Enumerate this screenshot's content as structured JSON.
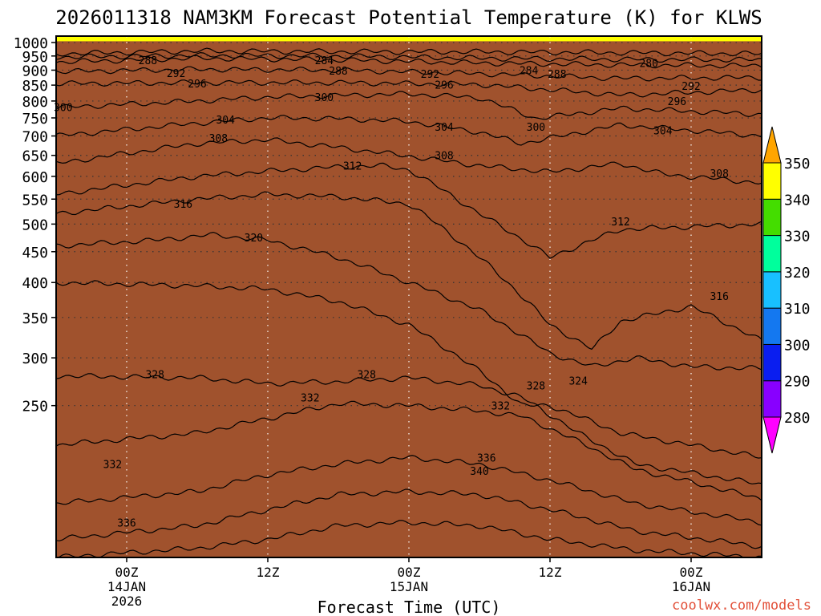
{
  "chart_data": {
    "type": "heatmap",
    "title": "2026011318 NAM3KM Forecast Potential Temperature (K) for KLWS",
    "xlabel": "Forecast Time (UTC)",
    "ylabel": "",
    "x_range_hours": [
      -5,
      45
    ],
    "y_range_hPa": [
      1025,
      140
    ],
    "y_ticks": [
      "250",
      "300",
      "350",
      "400",
      "450",
      "500",
      "550",
      "600",
      "650",
      "700",
      "750",
      "800",
      "850",
      "900",
      "950",
      "1000"
    ],
    "x_ticks": [
      {
        "hour": 0,
        "l1": "00Z",
        "l2": "14JAN",
        "l3": "2026"
      },
      {
        "hour": 10,
        "l1": "12Z",
        "l2": "",
        "l3": ""
      },
      {
        "hour": 20,
        "l1": "00Z",
        "l2": "15JAN",
        "l3": ""
      },
      {
        "hour": 30,
        "l1": "12Z",
        "l2": "",
        "l3": ""
      },
      {
        "hour": 40,
        "l1": "00Z",
        "l2": "16JAN",
        "l3": ""
      }
    ],
    "colorbar": {
      "ticks": [
        "350",
        "340",
        "330",
        "320",
        "310",
        "300",
        "290",
        "280"
      ],
      "bands": [
        {
          "from": 280,
          "to": 290,
          "color": "#8800ff"
        },
        {
          "from": 290,
          "to": 300,
          "color": "#0a1ef0"
        },
        {
          "from": 300,
          "to": 310,
          "color": "#1478f0"
        },
        {
          "from": 310,
          "to": 320,
          "color": "#18c0ff"
        },
        {
          "from": 320,
          "to": 330,
          "color": "#00ff9c"
        },
        {
          "from": 330,
          "to": 340,
          "color": "#44dd00"
        },
        {
          "from": 340,
          "to": 350,
          "color": "#ffff00"
        }
      ],
      "below_color": "#ff00ff",
      "above_color": "#ffa500"
    },
    "ground_level_hPa": 1005,
    "ground_color": "#a0522d",
    "series": [
      {
        "name": "280 K",
        "values": [
          [
            -5,
            958
          ],
          [
            5,
            968
          ],
          [
            15,
            966
          ],
          [
            25,
            965
          ],
          [
            35,
            962
          ],
          [
            45,
            958
          ]
        ]
      },
      {
        "name": "284 K",
        "values": [
          [
            -5,
            946
          ],
          [
            5,
            952
          ],
          [
            15,
            950
          ],
          [
            25,
            942
          ],
          [
            35,
            938
          ],
          [
            45,
            936
          ]
        ]
      },
      {
        "name": "288 K",
        "values": [
          [
            -5,
            928
          ],
          [
            5,
            942
          ],
          [
            15,
            936
          ],
          [
            25,
            925
          ],
          [
            35,
            918
          ],
          [
            45,
            915
          ]
        ]
      },
      {
        "name": "292 K",
        "values": [
          [
            -5,
            895
          ],
          [
            5,
            903
          ],
          [
            15,
            900
          ],
          [
            25,
            888
          ],
          [
            35,
            872
          ],
          [
            45,
            875
          ]
        ]
      },
      {
        "name": "296 K",
        "values": [
          [
            -5,
            855
          ],
          [
            5,
            858
          ],
          [
            15,
            858
          ],
          [
            25,
            852
          ],
          [
            35,
            818
          ],
          [
            45,
            835
          ]
        ]
      },
      {
        "name": "300 K",
        "values": [
          [
            -5,
            780
          ],
          [
            5,
            800
          ],
          [
            10,
            812
          ],
          [
            20,
            822
          ],
          [
            25,
            810
          ],
          [
            29,
            748
          ],
          [
            35,
            778
          ],
          [
            45,
            760
          ]
        ]
      },
      {
        "name": "304 K",
        "values": [
          [
            -5,
            700
          ],
          [
            5,
            735
          ],
          [
            10,
            750
          ],
          [
            15,
            748
          ],
          [
            20,
            740
          ],
          [
            25,
            710
          ],
          [
            28,
            680
          ],
          [
            35,
            730
          ],
          [
            45,
            700
          ]
        ]
      },
      {
        "name": "308 K",
        "values": [
          [
            -5,
            630
          ],
          [
            5,
            680
          ],
          [
            10,
            690
          ],
          [
            15,
            670
          ],
          [
            20,
            648
          ],
          [
            25,
            625
          ],
          [
            30,
            610
          ],
          [
            35,
            630
          ],
          [
            38,
            605
          ],
          [
            45,
            585
          ]
        ]
      },
      {
        "name": "312 K",
        "values": [
          [
            -5,
            560
          ],
          [
            5,
            600
          ],
          [
            10,
            612
          ],
          [
            15,
            622
          ],
          [
            18,
            625
          ],
          [
            20,
            615
          ],
          [
            25,
            520
          ],
          [
            30,
            440
          ],
          [
            35,
            490
          ],
          [
            40,
            495
          ],
          [
            45,
            500
          ]
        ]
      },
      {
        "name": "316 K",
        "values": [
          [
            -5,
            520
          ],
          [
            5,
            550
          ],
          [
            10,
            560
          ],
          [
            15,
            555
          ],
          [
            20,
            540
          ],
          [
            25,
            440
          ],
          [
            30,
            340
          ],
          [
            33,
            310
          ],
          [
            35,
            345
          ],
          [
            40,
            365
          ],
          [
            45,
            320
          ]
        ]
      },
      {
        "name": "320 K",
        "values": [
          [
            -5,
            460
          ],
          [
            2,
            470
          ],
          [
            6,
            480
          ],
          [
            10,
            470
          ],
          [
            15,
            440
          ],
          [
            20,
            400
          ],
          [
            25,
            360
          ],
          [
            30,
            305
          ],
          [
            33,
            290
          ],
          [
            36,
            300
          ],
          [
            40,
            290
          ],
          [
            45,
            288
          ]
        ]
      },
      {
        "name": "324 K",
        "values": [
          [
            -5,
            400
          ],
          [
            5,
            395
          ],
          [
            10,
            390
          ],
          [
            15,
            372
          ],
          [
            20,
            340
          ],
          [
            25,
            285
          ],
          [
            28,
            250
          ],
          [
            30,
            250
          ],
          [
            35,
            225
          ],
          [
            45,
            205
          ]
        ]
      },
      {
        "name": "328 K",
        "values": [
          [
            -5,
            280
          ],
          [
            5,
            278
          ],
          [
            10,
            272
          ],
          [
            15,
            274
          ],
          [
            20,
            278
          ],
          [
            25,
            270
          ],
          [
            28,
            258
          ],
          [
            32,
            225
          ],
          [
            36,
            200
          ],
          [
            45,
            185
          ]
        ]
      },
      {
        "name": "332 K",
        "values": [
          [
            -5,
            215
          ],
          [
            5,
            225
          ],
          [
            10,
            238
          ],
          [
            15,
            252
          ],
          [
            20,
            250
          ],
          [
            25,
            245
          ],
          [
            28,
            240
          ],
          [
            32,
            218
          ],
          [
            36,
            196
          ],
          [
            45,
            175
          ]
        ]
      },
      {
        "name": "336 K",
        "values": [
          [
            -5,
            172
          ],
          [
            5,
            180
          ],
          [
            10,
            192
          ],
          [
            15,
            200
          ],
          [
            20,
            205
          ],
          [
            25,
            200
          ],
          [
            30,
            188
          ],
          [
            36,
            172
          ],
          [
            45,
            160
          ]
        ]
      },
      {
        "name": "340 K",
        "values": [
          [
            -5,
            150
          ],
          [
            5,
            158
          ],
          [
            10,
            168
          ],
          [
            15,
            178
          ],
          [
            20,
            180
          ],
          [
            25,
            178
          ],
          [
            30,
            168
          ],
          [
            36,
            155
          ],
          [
            45,
            146
          ]
        ]
      },
      {
        "name": "344 K",
        "values": [
          [
            -5,
            140
          ],
          [
            5,
            145
          ],
          [
            10,
            150
          ],
          [
            15,
            158
          ],
          [
            20,
            160
          ],
          [
            25,
            158
          ],
          [
            30,
            150
          ],
          [
            36,
            144
          ],
          [
            45,
            140
          ]
        ]
      }
    ],
    "contour_labels": [
      {
        "text": "336",
        "x": 0,
        "p": 160
      },
      {
        "text": "332",
        "x": -1,
        "p": 200
      },
      {
        "text": "340",
        "x": 25,
        "p": 195
      },
      {
        "text": "336",
        "x": 25.5,
        "p": 205
      },
      {
        "text": "332",
        "x": 13,
        "p": 258
      },
      {
        "text": "332",
        "x": 26.5,
        "p": 250
      },
      {
        "text": "328",
        "x": 2,
        "p": 282
      },
      {
        "text": "328",
        "x": 17,
        "p": 282
      },
      {
        "text": "328",
        "x": 29,
        "p": 270
      },
      {
        "text": "324",
        "x": 32,
        "p": 275
      },
      {
        "text": "316",
        "x": 42,
        "p": 380
      },
      {
        "text": "320",
        "x": 9,
        "p": 475
      },
      {
        "text": "312",
        "x": 35,
        "p": 505
      },
      {
        "text": "316",
        "x": 4,
        "p": 540
      },
      {
        "text": "308",
        "x": 42,
        "p": 607
      },
      {
        "text": "312",
        "x": 16,
        "p": 625
      },
      {
        "text": "308",
        "x": 22.5,
        "p": 650
      },
      {
        "text": "308",
        "x": 6.5,
        "p": 695
      },
      {
        "text": "304",
        "x": 22.5,
        "p": 725
      },
      {
        "text": "300",
        "x": 29,
        "p": 725
      },
      {
        "text": "304",
        "x": 38,
        "p": 715
      },
      {
        "text": "304",
        "x": 7,
        "p": 745
      },
      {
        "text": "300",
        "x": -4.5,
        "p": 782
      },
      {
        "text": "300",
        "x": 14,
        "p": 812
      },
      {
        "text": "296",
        "x": 39,
        "p": 800
      },
      {
        "text": "296",
        "x": 5,
        "p": 855
      },
      {
        "text": "296",
        "x": 22.5,
        "p": 852
      },
      {
        "text": "292",
        "x": 40,
        "p": 848
      },
      {
        "text": "292",
        "x": 3.5,
        "p": 890
      },
      {
        "text": "292",
        "x": 21.5,
        "p": 888
      },
      {
        "text": "288",
        "x": 30.5,
        "p": 888
      },
      {
        "text": "288",
        "x": 15,
        "p": 898
      },
      {
        "text": "284",
        "x": 28.5,
        "p": 900
      },
      {
        "text": "284",
        "x": 14,
        "p": 935
      },
      {
        "text": "288",
        "x": 1.5,
        "p": 935
      },
      {
        "text": "280",
        "x": 37,
        "p": 925
      }
    ]
  },
  "credit": "coolwx.com/models"
}
